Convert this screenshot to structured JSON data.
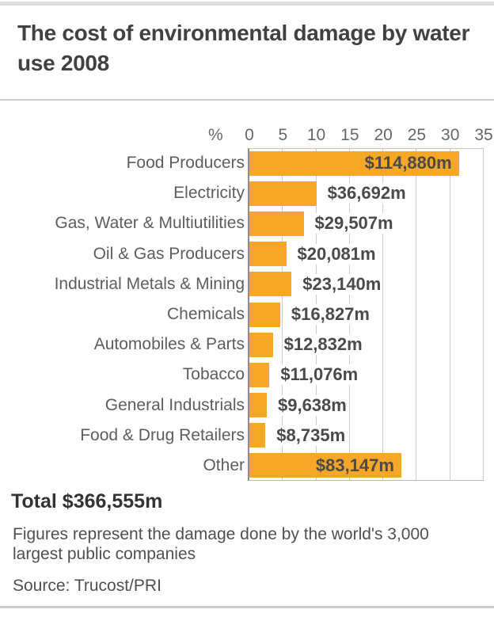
{
  "header": {
    "title": "The cost of environmental damage by water use 2008"
  },
  "axis": {
    "unit_label": "%"
  },
  "chart_data": {
    "type": "bar",
    "orientation": "horizontal",
    "title": "The cost of environmental damage by water use 2008",
    "xlabel": "%",
    "ylabel": "",
    "xlim": [
      0,
      35
    ],
    "x_ticks": [
      0,
      5,
      10,
      15,
      20,
      25,
      30,
      35
    ],
    "grid": true,
    "categories": [
      "Food Producers",
      "Electricity",
      "Gas, Water & Multiutilities",
      "Oil & Gas Producers",
      "Industrial Metals & Mining",
      "Chemicals",
      "Automobiles & Parts",
      "Tobacco",
      "General Industrials",
      "Food & Drug Retailers",
      "Other"
    ],
    "values_usd_m": [
      114880,
      36692,
      29507,
      20081,
      23140,
      16827,
      12832,
      11076,
      9638,
      8735,
      83147
    ],
    "values_pct_of_total": [
      31.3,
      10.0,
      8.1,
      5.5,
      6.3,
      4.6,
      3.5,
      3.0,
      2.6,
      2.4,
      22.7
    ],
    "value_labels": [
      "$114,880m",
      "$36,692m",
      "$29,507m",
      "$20,081m",
      "$23,140m",
      "$16,827m",
      "$12,832m",
      "$11,076m",
      "$9,638m",
      "$8,735m",
      "$83,147m"
    ],
    "value_label_positions": [
      "inside",
      "outside",
      "outside",
      "outside",
      "outside",
      "outside",
      "outside",
      "outside",
      "outside",
      "outside",
      "inside"
    ],
    "total_usd_m": 366555
  },
  "colors": {
    "bar": "#F7A728",
    "grid": "#cdcdcd",
    "axis_line": "#8c8c8c"
  },
  "footer": {
    "total": "Total $366,555m",
    "note": "Figures represent the damage done by the world's 3,000 largest public companies",
    "source": "Source: Trucost/PRI"
  }
}
